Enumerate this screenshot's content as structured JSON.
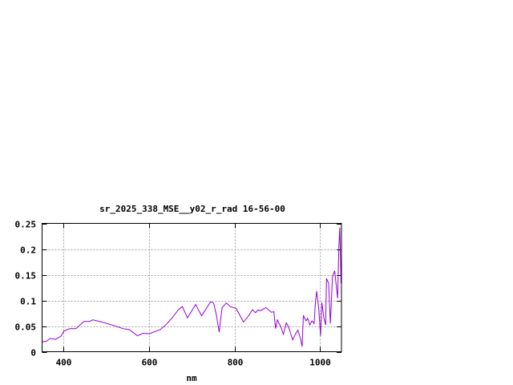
{
  "chart_data": {
    "type": "line",
    "title": "sr_2025_338_MSE__y02_r_rad 16-56-00",
    "xlabel": "nm",
    "ylabel": "",
    "xlim": [
      350,
      1050
    ],
    "ylim": [
      0,
      0.25
    ],
    "xticks": [
      400,
      600,
      800,
      1000
    ],
    "xtick_labels": [
      "400",
      "600",
      "800",
      "1000"
    ],
    "yticks": [
      0,
      0.05,
      0.1,
      0.15,
      0.2,
      0.25
    ],
    "ytick_labels": [
      "0",
      "0.05",
      "0.1",
      "0.15",
      "0.2",
      "0.25"
    ],
    "grid": true,
    "series": [
      {
        "color": "#9400d3",
        "x": [
          350,
          361,
          369,
          381,
          394,
          401,
          414,
          429,
          448,
          461,
          469,
          489,
          514,
          539,
          554,
          573,
          586,
          601,
          626,
          639,
          654,
          669,
          678,
          690,
          709,
          723,
          744,
          751,
          758,
          764,
          771,
          781,
          790,
          804,
          821,
          833,
          842,
          849,
          854,
          861,
          873,
          886,
          892,
          896,
          900,
          908,
          914,
          921,
          926,
          936,
          942,
          948,
          954,
          958,
          961,
          967,
          971,
          976,
          981,
          986,
          989,
          992,
          997,
          1001,
          1004,
          1009,
          1013,
          1015,
          1020,
          1024,
          1029,
          1034,
          1041,
          1044,
          1046,
          1049
        ],
        "y": [
          0.019,
          0.021,
          0.026,
          0.024,
          0.03,
          0.04,
          0.045,
          0.045,
          0.059,
          0.059,
          0.062,
          0.058,
          0.052,
          0.045,
          0.043,
          0.031,
          0.036,
          0.035,
          0.043,
          0.052,
          0.066,
          0.082,
          0.088,
          0.066,
          0.092,
          0.07,
          0.097,
          0.095,
          0.07,
          0.038,
          0.086,
          0.095,
          0.088,
          0.084,
          0.058,
          0.07,
          0.082,
          0.076,
          0.081,
          0.08,
          0.086,
          0.077,
          0.078,
          0.045,
          0.062,
          0.049,
          0.034,
          0.056,
          0.049,
          0.023,
          0.034,
          0.042,
          0.026,
          0.01,
          0.071,
          0.06,
          0.065,
          0.052,
          0.06,
          0.055,
          0.096,
          0.118,
          0.083,
          0.031,
          0.096,
          0.065,
          0.052,
          0.143,
          0.133,
          0.055,
          0.146,
          0.158,
          0.104,
          0.206,
          0.242,
          0.133
        ]
      }
    ]
  }
}
